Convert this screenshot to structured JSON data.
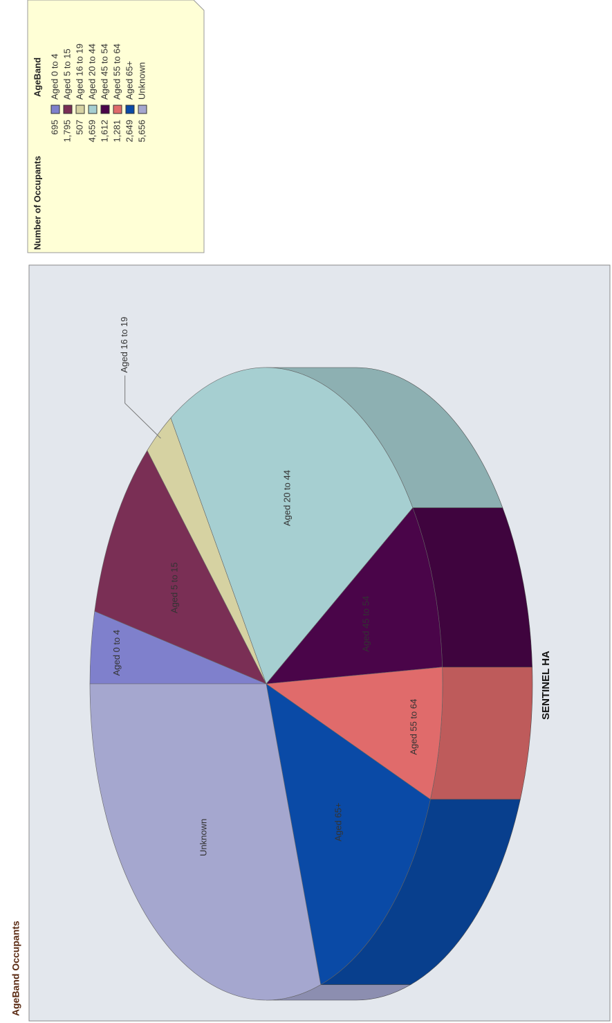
{
  "chart_data": {
    "type": "pie",
    "title": "AgeBand Occupants",
    "label": "SENTINEL HA",
    "legend_headers": [
      "Number of Occupants",
      "AgeBand"
    ],
    "categories": [
      "Aged 0 to 4",
      "Aged 5 to 15",
      "Aged 16 to 19",
      "Aged 20 to 44",
      "Aged 45 to 54",
      "Aged 55 to 64",
      "Aged 65+",
      "Unknown"
    ],
    "values": [
      695,
      1795,
      507,
      4659,
      1612,
      1281,
      2649,
      5656
    ],
    "value_labels": [
      "695",
      "1,795",
      "507",
      "4,659",
      "1,612",
      "1,281",
      "2,649",
      "5,656"
    ],
    "colors": [
      "#7f80cc",
      "#7a2f55",
      "#d6d2a2",
      "#a6cfd1",
      "#4a0549",
      "#e06b6b",
      "#0a4aa6",
      "#a5a7cf"
    ]
  }
}
